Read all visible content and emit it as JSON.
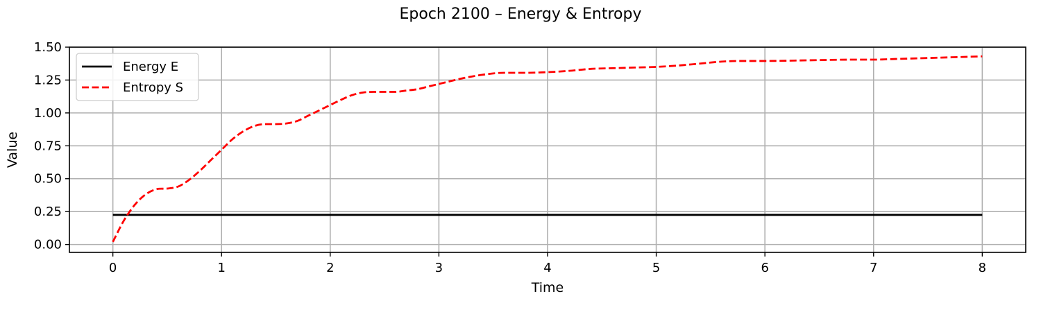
{
  "chart_data": {
    "type": "line",
    "title": "Epoch 2100 – Energy & Entropy",
    "xlabel": "Time",
    "ylabel": "Value",
    "xlim": [
      -0.4,
      8.4
    ],
    "ylim": [
      -0.06,
      1.5
    ],
    "x_ticks": [
      0,
      1,
      2,
      3,
      4,
      5,
      6,
      7,
      8
    ],
    "y_ticks": [
      0.0,
      0.25,
      0.5,
      0.75,
      1.0,
      1.25,
      1.5
    ],
    "x_tick_labels": [
      "0",
      "1",
      "2",
      "3",
      "4",
      "5",
      "6",
      "7",
      "8"
    ],
    "y_tick_labels": [
      "0.00",
      "0.25",
      "0.50",
      "0.75",
      "1.00",
      "1.25",
      "1.50"
    ],
    "grid": true,
    "legend_position": "top-left",
    "series": [
      {
        "name": "Energy E",
        "color": "#000000",
        "style": "solid",
        "x": [
          0,
          8
        ],
        "y": [
          0.225,
          0.225
        ]
      },
      {
        "name": "Entropy S",
        "color": "#ff0000",
        "style": "dashed",
        "x": [
          0,
          0.1,
          0.2,
          0.3,
          0.4,
          0.5,
          0.6,
          0.7,
          0.8,
          0.9,
          1.0,
          1.1,
          1.2,
          1.3,
          1.4,
          1.5,
          1.6,
          1.7,
          1.8,
          1.9,
          2.0,
          2.1,
          2.2,
          2.3,
          2.4,
          2.5,
          2.6,
          2.7,
          2.8,
          2.9,
          3.0,
          3.2,
          3.4,
          3.6,
          3.8,
          4.0,
          4.2,
          4.4,
          4.6,
          4.8,
          5.0,
          5.2,
          5.4,
          5.6,
          5.8,
          6.0,
          6.4,
          6.8,
          7.0,
          7.2,
          7.6,
          8.0
        ],
        "y": [
          0.02,
          0.18,
          0.3,
          0.38,
          0.42,
          0.425,
          0.44,
          0.49,
          0.56,
          0.64,
          0.72,
          0.8,
          0.86,
          0.9,
          0.915,
          0.915,
          0.92,
          0.94,
          0.98,
          1.02,
          1.06,
          1.1,
          1.135,
          1.155,
          1.16,
          1.16,
          1.16,
          1.17,
          1.18,
          1.2,
          1.22,
          1.26,
          1.29,
          1.305,
          1.305,
          1.31,
          1.32,
          1.335,
          1.34,
          1.345,
          1.35,
          1.36,
          1.375,
          1.39,
          1.395,
          1.395,
          1.4,
          1.405,
          1.405,
          1.41,
          1.42,
          1.43
        ]
      }
    ]
  }
}
